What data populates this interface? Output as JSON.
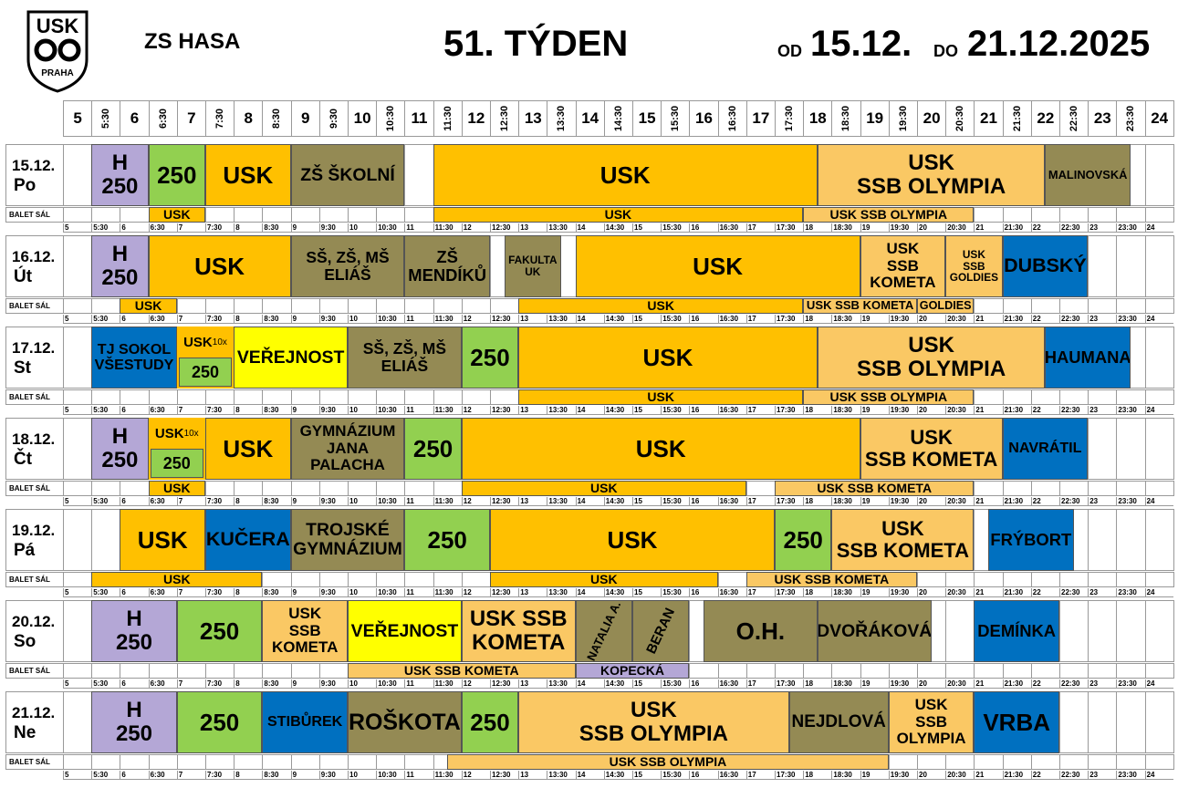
{
  "header": {
    "logo_top": "USK",
    "logo_bottom": "PRAHA",
    "place": "ZS HASA",
    "week": "51. TÝDEN",
    "from_word": "OD",
    "from_date": "15.12.",
    "to_word": "DO",
    "to_date": "21.12.2025",
    "slots": [
      "5",
      "5:30",
      "6",
      "6:30",
      "7",
      "7:30",
      "8",
      "8:30",
      "9",
      "9:30",
      "10",
      "10:30",
      "11",
      "11:30",
      "12",
      "12:30",
      "13",
      "13:30",
      "14",
      "14:30",
      "15",
      "15:30",
      "16",
      "16:30",
      "17",
      "17:30",
      "18",
      "18:30",
      "19",
      "19:30",
      "20",
      "20:30",
      "21",
      "21:30",
      "22",
      "22:30",
      "23",
      "23:30",
      "24"
    ]
  },
  "balet_label": "BALET SÁL",
  "colors": {
    "h": "#b4a7d6",
    "green": "#92d050",
    "usk": "#ffc000",
    "light": "#fac864",
    "olive": "#948a54",
    "yellow": "#ffff00",
    "blue": "#0070c0",
    "purple": "#b4a7d6"
  },
  "days": [
    {
      "date": "15.12.",
      "day": "Po",
      "events": [
        {
          "from": "5:30",
          "to": "6:30",
          "kind": "h",
          "lines": [
            "H",
            "250"
          ]
        },
        {
          "from": "6:30",
          "to": "7:30",
          "kind": "green",
          "lines": [
            "250"
          ]
        },
        {
          "from": "7:30",
          "to": "9:00",
          "kind": "usk",
          "lines": [
            "USK"
          ]
        },
        {
          "from": "9:00",
          "to": "11:00",
          "kind": "olive",
          "lines": [
            "ZŠ ŠKOLNÍ"
          ]
        },
        {
          "from": "11:30",
          "to": "18:15",
          "kind": "usk",
          "lines": [
            "USK"
          ]
        },
        {
          "from": "18:15",
          "to": "22:15",
          "kind": "light",
          "lines": [
            "USK",
            "SSB OLYMPIA"
          ]
        },
        {
          "from": "22:15",
          "to": "23:45",
          "kind": "olive",
          "lines": [
            "MALINOVSKÁ"
          ]
        }
      ],
      "balet": [
        {
          "from": "6:30",
          "to": "7:30",
          "kind": "usk",
          "text": "USK"
        },
        {
          "from": "11:30",
          "to": "18:00",
          "kind": "usk",
          "text": "USK"
        },
        {
          "from": "18:00",
          "to": "21:00",
          "kind": "light",
          "text": "USK SSB OLYMPIA"
        }
      ]
    },
    {
      "date": "16.12.",
      "day": "Út",
      "events": [
        {
          "from": "5:30",
          "to": "6:30",
          "kind": "h",
          "lines": [
            "H",
            "250"
          ]
        },
        {
          "from": "6:30",
          "to": "9:00",
          "kind": "usk",
          "lines": [
            "USK"
          ]
        },
        {
          "from": "9:00",
          "to": "11:00",
          "kind": "olive",
          "lines": [
            "SŠ, ZŠ, MŠ",
            "ELIÁŠ"
          ]
        },
        {
          "from": "11:00",
          "to": "12:30",
          "kind": "olive",
          "lines": [
            "ZŠ",
            "MENDÍKŮ"
          ]
        },
        {
          "from": "12:45",
          "to": "13:45",
          "kind": "olive",
          "lines": [
            "FAKULTA",
            "UK"
          ]
        },
        {
          "from": "14:00",
          "to": "19:00",
          "kind": "usk",
          "lines": [
            "USK"
          ]
        },
        {
          "from": "19:00",
          "to": "20:30",
          "kind": "light",
          "lines": [
            "USK",
            "SSB",
            "KOMETA"
          ]
        },
        {
          "from": "20:30",
          "to": "21:30",
          "kind": "light",
          "lines": [
            "USK",
            "SSB",
            "GOLDIES"
          ]
        },
        {
          "from": "21:30",
          "to": "23:00",
          "kind": "blue",
          "lines": [
            "DUBSKÝ"
          ]
        }
      ],
      "balet": [
        {
          "from": "6:00",
          "to": "7:00",
          "kind": "usk",
          "text": "USK"
        },
        {
          "from": "13:00",
          "to": "18:00",
          "kind": "usk",
          "text": "USK"
        },
        {
          "from": "18:00",
          "to": "20:00",
          "kind": "light",
          "text": "USK SSB KOMETA"
        },
        {
          "from": "20:00",
          "to": "21:00",
          "kind": "light",
          "text": "GOLDIES"
        }
      ]
    },
    {
      "date": "17.12.",
      "day": "St",
      "events": [
        {
          "from": "5:30",
          "to": "7:00",
          "kind": "blue",
          "lines": [
            "TJ SOKOL",
            "VŠESTUDY"
          ]
        },
        {
          "from": "7:00",
          "to": "8:00",
          "kind": "split",
          "top": "USK",
          "note": "10x",
          "bottom": "250"
        },
        {
          "from": "8:00",
          "to": "10:00",
          "kind": "yellow",
          "lines": [
            "VEŘEJNOST"
          ]
        },
        {
          "from": "10:00",
          "to": "12:00",
          "kind": "olive",
          "lines": [
            "SŠ, ZŠ, MŠ",
            "ELIÁŠ"
          ]
        },
        {
          "from": "12:00",
          "to": "13:00",
          "kind": "green",
          "lines": [
            "250"
          ]
        },
        {
          "from": "13:00",
          "to": "18:15",
          "kind": "usk",
          "lines": [
            "USK"
          ]
        },
        {
          "from": "18:15",
          "to": "22:15",
          "kind": "light",
          "lines": [
            "USK",
            "SSB OLYMPIA"
          ]
        },
        {
          "from": "22:15",
          "to": "23:45",
          "kind": "blue",
          "lines": [
            "HAUMANA"
          ]
        }
      ],
      "balet": [
        {
          "from": "13:00",
          "to": "18:00",
          "kind": "usk",
          "text": "USK"
        },
        {
          "from": "18:00",
          "to": "21:00",
          "kind": "light",
          "text": "USK SSB OLYMPIA"
        }
      ]
    },
    {
      "date": "18.12.",
      "day": "Čt",
      "events": [
        {
          "from": "5:30",
          "to": "6:30",
          "kind": "h",
          "lines": [
            "H",
            "250"
          ]
        },
        {
          "from": "6:30",
          "to": "7:30",
          "kind": "split",
          "top": "USK",
          "note": "10x",
          "bottom": "250"
        },
        {
          "from": "7:30",
          "to": "9:00",
          "kind": "usk",
          "lines": [
            "USK"
          ]
        },
        {
          "from": "9:00",
          "to": "11:00",
          "kind": "olive",
          "lines": [
            "GYMNÁZIUM",
            "JANA",
            "PALACHA"
          ]
        },
        {
          "from": "11:00",
          "to": "12:00",
          "kind": "green",
          "lines": [
            "250"
          ]
        },
        {
          "from": "12:00",
          "to": "19:00",
          "kind": "usk",
          "lines": [
            "USK"
          ]
        },
        {
          "from": "19:00",
          "to": "21:30",
          "kind": "light",
          "lines": [
            "USK",
            "SSB KOMETA"
          ]
        },
        {
          "from": "21:30",
          "to": "23:00",
          "kind": "blue",
          "lines": [
            "NAVRÁTIL"
          ]
        }
      ],
      "balet": [
        {
          "from": "6:30",
          "to": "7:30",
          "kind": "usk",
          "text": "USK"
        },
        {
          "from": "12:00",
          "to": "17:00",
          "kind": "usk",
          "text": "USK"
        },
        {
          "from": "17:30",
          "to": "21:00",
          "kind": "light",
          "text": "USK SSB KOMETA"
        }
      ]
    },
    {
      "date": "19.12.",
      "day": "Pá",
      "events": [
        {
          "from": "6:00",
          "to": "7:30",
          "kind": "usk",
          "lines": [
            "USK"
          ]
        },
        {
          "from": "7:30",
          "to": "9:00",
          "kind": "blue",
          "lines": [
            "KUČERA"
          ]
        },
        {
          "from": "9:00",
          "to": "11:00",
          "kind": "olive",
          "lines": [
            "TROJSKÉ",
            "GYMNÁZIUM"
          ]
        },
        {
          "from": "11:00",
          "to": "12:30",
          "kind": "green",
          "lines": [
            "250"
          ]
        },
        {
          "from": "12:30",
          "to": "17:30",
          "kind": "usk",
          "lines": [
            "USK"
          ]
        },
        {
          "from": "17:30",
          "to": "18:30",
          "kind": "green",
          "lines": [
            "250"
          ]
        },
        {
          "from": "18:30",
          "to": "21:00",
          "kind": "light",
          "lines": [
            "USK",
            "SSB KOMETA"
          ]
        },
        {
          "from": "21:15",
          "to": "22:45",
          "kind": "blue",
          "lines": [
            "FRÝBORT"
          ]
        }
      ],
      "balet": [
        {
          "from": "5:30",
          "to": "8:30",
          "kind": "usk",
          "text": "USK"
        },
        {
          "from": "12:30",
          "to": "16:30",
          "kind": "usk",
          "text": "USK"
        },
        {
          "from": "17:00",
          "to": "20:00",
          "kind": "light",
          "text": "USK SSB KOMETA"
        }
      ]
    },
    {
      "date": "20.12.",
      "day": "So",
      "events": [
        {
          "from": "5:30",
          "to": "7:00",
          "kind": "h",
          "lines": [
            "H",
            "250"
          ]
        },
        {
          "from": "7:00",
          "to": "8:30",
          "kind": "green",
          "lines": [
            "250"
          ]
        },
        {
          "from": "8:30",
          "to": "10:00",
          "kind": "light",
          "lines": [
            "USK",
            "SSB",
            "KOMETA"
          ]
        },
        {
          "from": "10:00",
          "to": "12:00",
          "kind": "yellow",
          "lines": [
            "VEŘEJNOST"
          ]
        },
        {
          "from": "12:00",
          "to": "14:00",
          "kind": "light",
          "lines": [
            "USK SSB",
            "KOMETA"
          ]
        },
        {
          "from": "14:00",
          "to": "15:00",
          "kind": "olive",
          "lines": [
            "NATALIA A."
          ],
          "rotated": true
        },
        {
          "from": "15:00",
          "to": "16:00",
          "kind": "olive",
          "lines": [
            "BERAN"
          ],
          "rotated": true
        },
        {
          "from": "16:15",
          "to": "18:15",
          "kind": "olive",
          "lines": [
            "O.H."
          ]
        },
        {
          "from": "18:15",
          "to": "20:15",
          "kind": "olive",
          "lines": [
            "DVOŘÁKOVÁ"
          ]
        },
        {
          "from": "21:00",
          "to": "22:30",
          "kind": "blue",
          "lines": [
            "DEMÍNKA"
          ]
        }
      ],
      "balet": [
        {
          "from": "10:00",
          "to": "14:00",
          "kind": "light",
          "text": "USK SSB KOMETA"
        },
        {
          "from": "14:00",
          "to": "16:00",
          "kind": "purple",
          "text": "KOPECKÁ"
        }
      ]
    },
    {
      "date": "21.12.",
      "day": "Ne",
      "events": [
        {
          "from": "5:30",
          "to": "7:00",
          "kind": "h",
          "lines": [
            "H",
            "250"
          ]
        },
        {
          "from": "7:00",
          "to": "8:30",
          "kind": "green",
          "lines": [
            "250"
          ]
        },
        {
          "from": "8:30",
          "to": "10:00",
          "kind": "blue",
          "lines": [
            "STIBŮREK"
          ]
        },
        {
          "from": "10:00",
          "to": "12:00",
          "kind": "olive",
          "lines": [
            "ROŠKOTA"
          ]
        },
        {
          "from": "12:00",
          "to": "13:00",
          "kind": "green",
          "lines": [
            "250"
          ]
        },
        {
          "from": "13:00",
          "to": "17:45",
          "kind": "light",
          "lines": [
            "USK",
            "SSB OLYMPIA"
          ]
        },
        {
          "from": "17:45",
          "to": "19:30",
          "kind": "olive",
          "lines": [
            "NEJDLOVÁ"
          ]
        },
        {
          "from": "19:30",
          "to": "21:00",
          "kind": "light",
          "lines": [
            "USK",
            "SSB",
            "OLYMPIA"
          ]
        },
        {
          "from": "21:00",
          "to": "22:30",
          "kind": "blue",
          "lines": [
            "VRBA"
          ]
        }
      ],
      "balet": [
        {
          "from": "11:45",
          "to": "19:30",
          "kind": "light",
          "text": "USK SSB OLYMPIA"
        }
      ]
    }
  ]
}
